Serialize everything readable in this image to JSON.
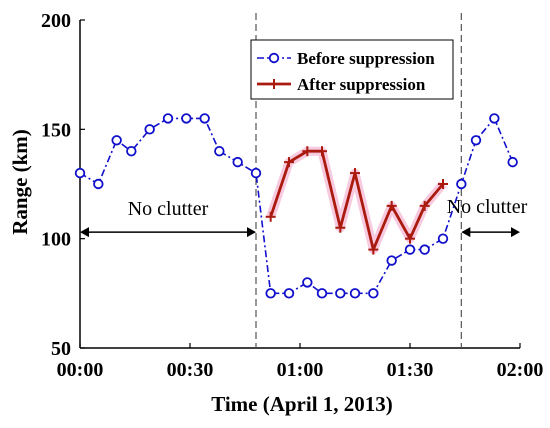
{
  "chart_data": {
    "type": "line",
    "xlabel": "Time (April 1, 2013)",
    "ylabel": "Range (km)",
    "ylim": [
      50,
      200
    ],
    "xlim": [
      "00:00",
      "02:00"
    ],
    "x_ticks": [
      "00:00",
      "00:30",
      "01:00",
      "01:30",
      "02:00"
    ],
    "y_ticks": [
      50,
      100,
      150,
      200
    ],
    "grid": false,
    "legend_position": "top-center",
    "series": [
      {
        "name": "Before suppression",
        "color": "#1010cc",
        "marker": "circle",
        "line_style": "dash-dot",
        "points": [
          [
            "00:00",
            130
          ],
          [
            "00:05",
            125
          ],
          [
            "00:10",
            145
          ],
          [
            "00:14",
            140
          ],
          [
            "00:19",
            150
          ],
          [
            "00:24",
            155
          ],
          [
            "00:29",
            155
          ],
          [
            "00:34",
            155
          ],
          [
            "00:38",
            140
          ],
          [
            "00:43",
            135
          ],
          [
            "00:48",
            130
          ],
          [
            "00:52",
            75
          ],
          [
            "00:57",
            75
          ],
          [
            "01:02",
            80
          ],
          [
            "01:06",
            75
          ],
          [
            "01:11",
            75
          ],
          [
            "01:15",
            75
          ],
          [
            "01:20",
            75
          ],
          [
            "01:25",
            90
          ],
          [
            "01:30",
            95
          ],
          [
            "01:34",
            95
          ],
          [
            "01:39",
            100
          ],
          [
            "01:44",
            125
          ],
          [
            "01:48",
            145
          ],
          [
            "01:53",
            155
          ],
          [
            "01:58",
            135
          ]
        ]
      },
      {
        "name": "After suppression",
        "color": "#aa1a0e",
        "marker": "plus",
        "line_style": "solid",
        "points": [
          [
            "00:52",
            110
          ],
          [
            "00:57",
            135
          ],
          [
            "01:02",
            140
          ],
          [
            "01:06",
            140
          ],
          [
            "01:11",
            105
          ],
          [
            "01:15",
            130
          ],
          [
            "01:20",
            95
          ],
          [
            "01:25",
            115
          ],
          [
            "01:30",
            100
          ],
          [
            "01:34",
            115
          ],
          [
            "01:39",
            125
          ]
        ]
      }
    ],
    "boundaries": [
      "00:48",
      "01:44"
    ],
    "annotations": [
      {
        "text": "No clutter",
        "label_x": "00:24",
        "label_y": 114,
        "arrow_from": "00:00",
        "arrow_to": "00:48",
        "arrow_y": 103
      },
      {
        "text": "No clutter",
        "label_x": "01:51",
        "label_y": 115,
        "arrow_from": "01:44",
        "arrow_to": "02:00",
        "arrow_y": 103
      }
    ]
  }
}
